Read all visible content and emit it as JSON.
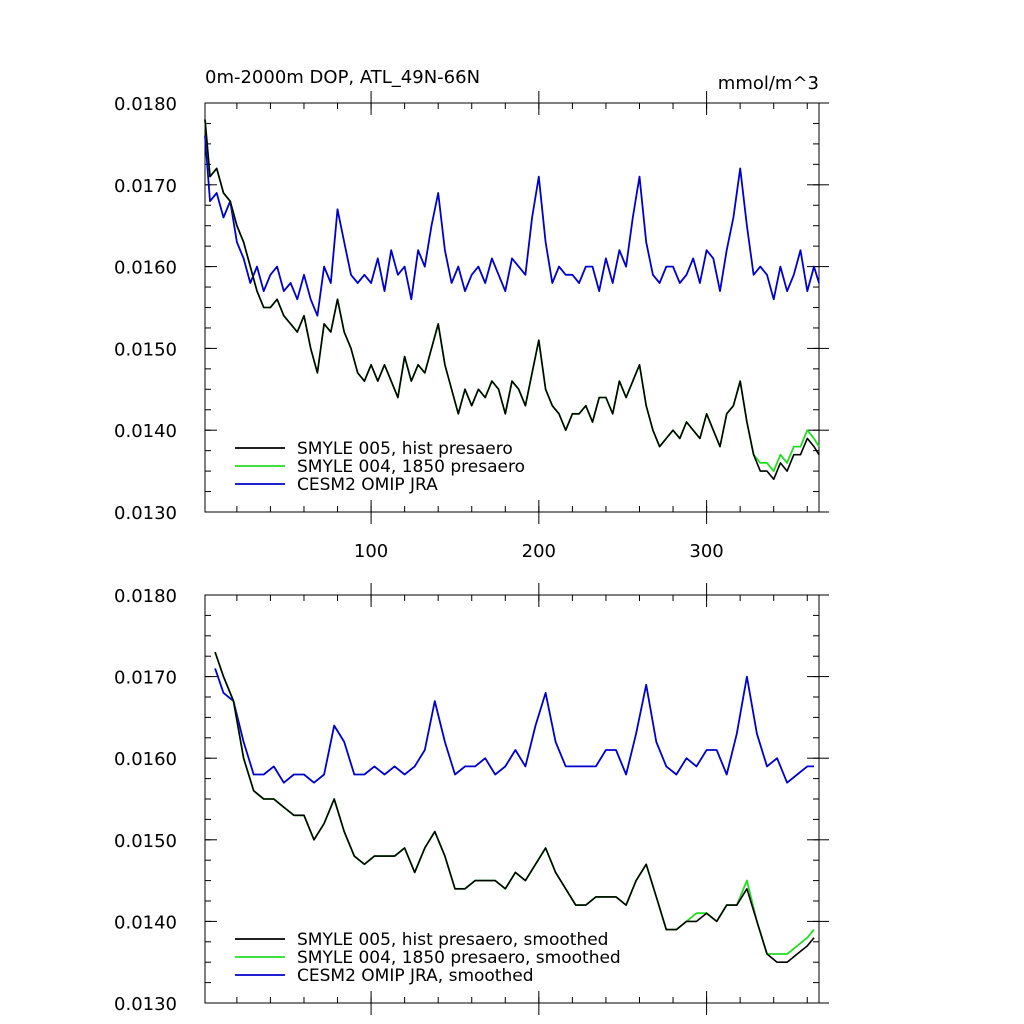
{
  "chart_data": [
    {
      "type": "line",
      "title": "0m-2000m DOP, ATL_49N-66N",
      "units": "mmol/m^3",
      "xlim": [
        1,
        367
      ],
      "ylim": [
        0.013,
        0.018
      ],
      "x_ticks": [
        100,
        200,
        300
      ],
      "x_tick_labels": [
        "100",
        "200",
        "300"
      ],
      "y_ticks": [
        0.013,
        0.014,
        0.015,
        0.016,
        0.017,
        0.018
      ],
      "y_tick_labels": [
        "0.0130",
        "0.0140",
        "0.0150",
        "0.0160",
        "0.0170",
        "0.0180"
      ],
      "legend": {
        "placement": "bottom-left",
        "entries": [
          "SMYLE 005, hist presaero",
          "SMYLE 004, 1850 presaero",
          "CESM2 OMIP JRA"
        ]
      },
      "series": [
        {
          "name": "SMYLE 005, hist presaero",
          "color": "#000000",
          "x": [
            1,
            4,
            8,
            12,
            16,
            20,
            24,
            28,
            32,
            36,
            40,
            44,
            48,
            52,
            56,
            60,
            64,
            68,
            72,
            76,
            80,
            84,
            88,
            92,
            96,
            100,
            104,
            108,
            112,
            116,
            120,
            124,
            128,
            132,
            136,
            140,
            144,
            148,
            152,
            156,
            160,
            164,
            168,
            172,
            176,
            180,
            184,
            188,
            192,
            196,
            200,
            204,
            208,
            212,
            216,
            220,
            224,
            228,
            232,
            236,
            240,
            244,
            248,
            252,
            256,
            260,
            264,
            268,
            272,
            276,
            280,
            284,
            288,
            292,
            296,
            300,
            304,
            308,
            312,
            316,
            320,
            324,
            328,
            332,
            336,
            340,
            344,
            348,
            352,
            356,
            360,
            364,
            367
          ],
          "y": [
            0.0178,
            0.0171,
            0.0172,
            0.0169,
            0.0168,
            0.0165,
            0.0163,
            0.016,
            0.0157,
            0.0155,
            0.0155,
            0.0156,
            0.0154,
            0.0153,
            0.0152,
            0.0154,
            0.015,
            0.0147,
            0.0153,
            0.0152,
            0.0156,
            0.0152,
            0.015,
            0.0147,
            0.0146,
            0.0148,
            0.0146,
            0.0148,
            0.0146,
            0.0144,
            0.0149,
            0.0146,
            0.0148,
            0.0147,
            0.015,
            0.0153,
            0.0148,
            0.0145,
            0.0142,
            0.0145,
            0.0143,
            0.0145,
            0.0144,
            0.0146,
            0.0145,
            0.0142,
            0.0146,
            0.0145,
            0.0143,
            0.0147,
            0.0151,
            0.0145,
            0.0143,
            0.0142,
            0.014,
            0.0142,
            0.0142,
            0.0143,
            0.0141,
            0.0144,
            0.0144,
            0.0142,
            0.0146,
            0.0144,
            0.0146,
            0.0148,
            0.0143,
            0.014,
            0.0138,
            0.0139,
            0.014,
            0.0139,
            0.0141,
            0.014,
            0.0139,
            0.0142,
            0.014,
            0.0138,
            0.0142,
            0.0143,
            0.0146,
            0.0141,
            0.0137,
            0.0135,
            0.0135,
            0.0134,
            0.0136,
            0.0135,
            0.0137,
            0.0137,
            0.0139,
            0.0138,
            0.0137
          ]
        },
        {
          "name": "SMYLE 004, 1850 presaero",
          "color": "#22dd22",
          "x": [
            1,
            4,
            8,
            12,
            16,
            20,
            24,
            28,
            32,
            36,
            40,
            44,
            48,
            52,
            56,
            60,
            64,
            68,
            72,
            76,
            80,
            84,
            88,
            92,
            96,
            100,
            104,
            108,
            112,
            116,
            120,
            124,
            128,
            132,
            136,
            140,
            144,
            148,
            152,
            156,
            160,
            164,
            168,
            172,
            176,
            180,
            184,
            188,
            192,
            196,
            200,
            204,
            208,
            212,
            216,
            220,
            224,
            228,
            232,
            236,
            240,
            244,
            248,
            252,
            256,
            260,
            264,
            268,
            272,
            276,
            280,
            284,
            288,
            292,
            296,
            300,
            304,
            308,
            312,
            316,
            320,
            324,
            328,
            332,
            336,
            340,
            344,
            348,
            352,
            356,
            360,
            364,
            367
          ],
          "y": [
            0.0178,
            0.0171,
            0.0172,
            0.0169,
            0.0168,
            0.0165,
            0.0163,
            0.016,
            0.0157,
            0.0155,
            0.0155,
            0.0156,
            0.0154,
            0.0153,
            0.0152,
            0.0154,
            0.015,
            0.0147,
            0.0153,
            0.0152,
            0.0156,
            0.0152,
            0.015,
            0.0147,
            0.0146,
            0.0148,
            0.0146,
            0.0148,
            0.0146,
            0.0144,
            0.0149,
            0.0146,
            0.0148,
            0.0147,
            0.015,
            0.0153,
            0.0148,
            0.0145,
            0.0142,
            0.0145,
            0.0143,
            0.0145,
            0.0144,
            0.0146,
            0.0145,
            0.0142,
            0.0146,
            0.0145,
            0.0143,
            0.0147,
            0.0151,
            0.0145,
            0.0143,
            0.0142,
            0.014,
            0.0142,
            0.0142,
            0.0143,
            0.0141,
            0.0144,
            0.0144,
            0.0142,
            0.0146,
            0.0144,
            0.0146,
            0.0148,
            0.0143,
            0.014,
            0.0138,
            0.0139,
            0.014,
            0.0139,
            0.0141,
            0.014,
            0.0139,
            0.0142,
            0.014,
            0.0138,
            0.0142,
            0.0143,
            0.0146,
            0.0141,
            0.0137,
            0.0136,
            0.0136,
            0.0135,
            0.0137,
            0.0136,
            0.0138,
            0.0138,
            0.014,
            0.0139,
            0.0138
          ]
        },
        {
          "name": "CESM2 OMIP JRA",
          "color": "#0000cc",
          "x": [
            1,
            4,
            8,
            12,
            16,
            20,
            24,
            28,
            32,
            36,
            40,
            44,
            48,
            52,
            56,
            60,
            64,
            68,
            72,
            76,
            80,
            84,
            88,
            92,
            96,
            100,
            104,
            108,
            112,
            116,
            120,
            124,
            128,
            132,
            136,
            140,
            144,
            148,
            152,
            156,
            160,
            164,
            168,
            172,
            176,
            180,
            184,
            188,
            192,
            196,
            200,
            204,
            208,
            212,
            216,
            220,
            224,
            228,
            232,
            236,
            240,
            244,
            248,
            252,
            256,
            260,
            264,
            268,
            272,
            276,
            280,
            284,
            288,
            292,
            296,
            300,
            304,
            308,
            312,
            316,
            320,
            324,
            328,
            332,
            336,
            340,
            344,
            348,
            352,
            356,
            360,
            364,
            367
          ],
          "y": [
            0.0176,
            0.0168,
            0.0169,
            0.0166,
            0.0168,
            0.0163,
            0.0161,
            0.0158,
            0.016,
            0.0157,
            0.0159,
            0.016,
            0.0157,
            0.0158,
            0.0156,
            0.0159,
            0.0156,
            0.0154,
            0.016,
            0.0158,
            0.0167,
            0.0163,
            0.0159,
            0.0158,
            0.0159,
            0.0158,
            0.0161,
            0.0157,
            0.0162,
            0.0159,
            0.016,
            0.0156,
            0.0162,
            0.016,
            0.0165,
            0.0169,
            0.0162,
            0.0158,
            0.016,
            0.0157,
            0.0159,
            0.016,
            0.0158,
            0.0161,
            0.0159,
            0.0157,
            0.0161,
            0.016,
            0.0159,
            0.0166,
            0.0171,
            0.0163,
            0.0158,
            0.016,
            0.0159,
            0.0159,
            0.0158,
            0.016,
            0.016,
            0.0157,
            0.0161,
            0.0158,
            0.0162,
            0.016,
            0.0166,
            0.0171,
            0.0163,
            0.0159,
            0.0158,
            0.016,
            0.016,
            0.0158,
            0.0159,
            0.0161,
            0.0158,
            0.0162,
            0.0161,
            0.0157,
            0.0162,
            0.0166,
            0.0172,
            0.0165,
            0.0159,
            0.016,
            0.0159,
            0.0156,
            0.016,
            0.0157,
            0.0159,
            0.0162,
            0.0157,
            0.016,
            0.0158
          ]
        }
      ]
    },
    {
      "type": "line",
      "xlim": [
        1,
        367
      ],
      "ylim": [
        0.013,
        0.018
      ],
      "x_ticks": [
        100,
        200,
        300
      ],
      "x_tick_labels": [
        "",
        "",
        ""
      ],
      "y_ticks": [
        0.013,
        0.014,
        0.015,
        0.016,
        0.017,
        0.018
      ],
      "y_tick_labels": [
        "0.0130",
        "0.0140",
        "0.0150",
        "0.0160",
        "0.0170",
        "0.0180"
      ],
      "legend": {
        "placement": "bottom-left",
        "entries": [
          "SMYLE 005, hist presaero, smoothed",
          "SMYLE 004, 1850 presaero, smoothed",
          "CESM2 OMIP JRA, smoothed"
        ]
      },
      "series": [
        {
          "name": "SMYLE 005, hist presaero, smoothed",
          "color": "#000000",
          "x": [
            7,
            12,
            18,
            24,
            30,
            36,
            42,
            48,
            54,
            60,
            66,
            72,
            78,
            84,
            90,
            96,
            102,
            108,
            114,
            120,
            126,
            132,
            138,
            144,
            150,
            156,
            162,
            168,
            174,
            180,
            186,
            192,
            198,
            204,
            210,
            216,
            222,
            228,
            234,
            240,
            246,
            252,
            258,
            264,
            270,
            276,
            282,
            288,
            294,
            300,
            306,
            312,
            318,
            324,
            330,
            336,
            342,
            348,
            354,
            360,
            364
          ],
          "y": [
            0.0173,
            0.017,
            0.0167,
            0.016,
            0.0156,
            0.0155,
            0.0155,
            0.0154,
            0.0153,
            0.0153,
            0.015,
            0.0152,
            0.0155,
            0.0151,
            0.0148,
            0.0147,
            0.0148,
            0.0148,
            0.0148,
            0.0149,
            0.0146,
            0.0149,
            0.0151,
            0.0148,
            0.0144,
            0.0144,
            0.0145,
            0.0145,
            0.0145,
            0.0144,
            0.0146,
            0.0145,
            0.0147,
            0.0149,
            0.0146,
            0.0144,
            0.0142,
            0.0142,
            0.0143,
            0.0143,
            0.0143,
            0.0142,
            0.0145,
            0.0147,
            0.0143,
            0.0139,
            0.0139,
            0.014,
            0.014,
            0.0141,
            0.014,
            0.0142,
            0.0142,
            0.0144,
            0.014,
            0.0136,
            0.0135,
            0.0135,
            0.0136,
            0.0137,
            0.0138
          ]
        },
        {
          "name": "SMYLE 004, 1850 presaero, smoothed",
          "color": "#22dd22",
          "x": [
            7,
            12,
            18,
            24,
            30,
            36,
            42,
            48,
            54,
            60,
            66,
            72,
            78,
            84,
            90,
            96,
            102,
            108,
            114,
            120,
            126,
            132,
            138,
            144,
            150,
            156,
            162,
            168,
            174,
            180,
            186,
            192,
            198,
            204,
            210,
            216,
            222,
            228,
            234,
            240,
            246,
            252,
            258,
            264,
            270,
            276,
            282,
            288,
            294,
            300,
            306,
            312,
            318,
            324,
            330,
            336,
            342,
            348,
            354,
            360,
            364
          ],
          "y": [
            0.0173,
            0.017,
            0.0167,
            0.016,
            0.0156,
            0.0155,
            0.0155,
            0.0154,
            0.0153,
            0.0153,
            0.015,
            0.0152,
            0.0155,
            0.0151,
            0.0148,
            0.0147,
            0.0148,
            0.0148,
            0.0148,
            0.0149,
            0.0146,
            0.0149,
            0.0151,
            0.0148,
            0.0144,
            0.0144,
            0.0145,
            0.0145,
            0.0145,
            0.0144,
            0.0146,
            0.0145,
            0.0147,
            0.0149,
            0.0146,
            0.0144,
            0.0142,
            0.0142,
            0.0143,
            0.0143,
            0.0143,
            0.0142,
            0.0145,
            0.0147,
            0.0143,
            0.0139,
            0.0139,
            0.014,
            0.0141,
            0.0141,
            0.014,
            0.0142,
            0.0142,
            0.0145,
            0.014,
            0.0136,
            0.0136,
            0.0136,
            0.0137,
            0.0138,
            0.0139
          ]
        },
        {
          "name": "CESM2 OMIP JRA, smoothed",
          "color": "#0000cc",
          "x": [
            7,
            12,
            18,
            24,
            30,
            36,
            42,
            48,
            54,
            60,
            66,
            72,
            78,
            84,
            90,
            96,
            102,
            108,
            114,
            120,
            126,
            132,
            138,
            144,
            150,
            156,
            162,
            168,
            174,
            180,
            186,
            192,
            198,
            204,
            210,
            216,
            222,
            228,
            234,
            240,
            246,
            252,
            258,
            264,
            270,
            276,
            282,
            288,
            294,
            300,
            306,
            312,
            318,
            324,
            330,
            336,
            342,
            348,
            354,
            360,
            364
          ],
          "y": [
            0.0171,
            0.0168,
            0.0167,
            0.0162,
            0.0158,
            0.0158,
            0.0159,
            0.0157,
            0.0158,
            0.0158,
            0.0157,
            0.0158,
            0.0164,
            0.0162,
            0.0158,
            0.0158,
            0.0159,
            0.0158,
            0.0159,
            0.0158,
            0.0159,
            0.0161,
            0.0167,
            0.0162,
            0.0158,
            0.0159,
            0.0159,
            0.016,
            0.0158,
            0.0159,
            0.0161,
            0.0159,
            0.0164,
            0.0168,
            0.0162,
            0.0159,
            0.0159,
            0.0159,
            0.0159,
            0.0161,
            0.0161,
            0.0158,
            0.0163,
            0.0169,
            0.0162,
            0.0159,
            0.0158,
            0.016,
            0.0159,
            0.0161,
            0.0161,
            0.0158,
            0.0163,
            0.017,
            0.0163,
            0.0159,
            0.016,
            0.0157,
            0.0158,
            0.0159,
            0.0159
          ]
        }
      ]
    }
  ]
}
